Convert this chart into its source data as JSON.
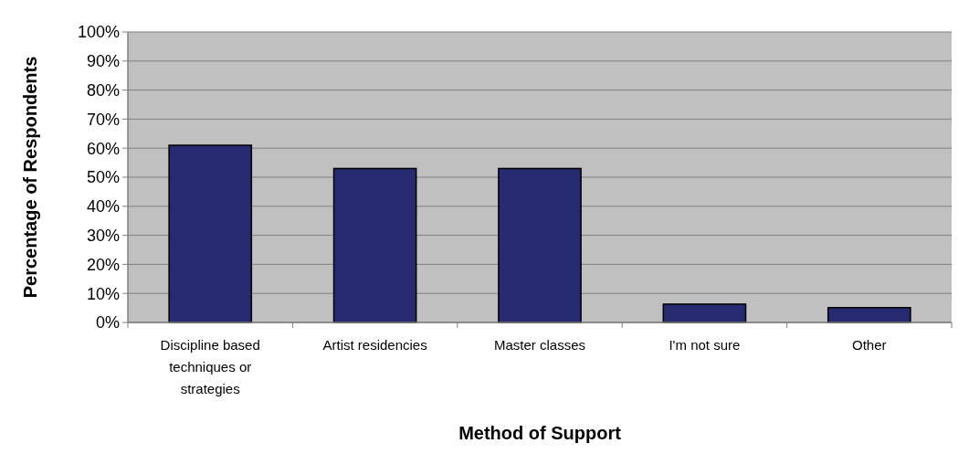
{
  "chart_data": {
    "type": "bar",
    "xlabel": "Method of Support",
    "ylabel": "Percentage of Respondents",
    "categories": [
      "Discipline based techniques or strategies",
      "Artist residencies",
      "Master classes",
      "I'm not sure",
      "Other"
    ],
    "values": [
      61,
      53,
      53,
      6.3,
      5.1
    ],
    "color": "#262a70",
    "ylim": [
      0,
      100
    ],
    "yticks": [
      {
        "value": 0,
        "label": "0%"
      },
      {
        "value": 10,
        "label": "10%"
      },
      {
        "value": 20,
        "label": "20%"
      },
      {
        "value": 30,
        "label": "30%"
      },
      {
        "value": 40,
        "label": "40%"
      },
      {
        "value": 50,
        "label": "50%"
      },
      {
        "value": 60,
        "label": "60%"
      },
      {
        "value": 70,
        "label": "70%"
      },
      {
        "value": 80,
        "label": "80%"
      },
      {
        "value": 90,
        "label": "90%"
      },
      {
        "value": 100,
        "label": "100%"
      }
    ],
    "grid": "y"
  }
}
